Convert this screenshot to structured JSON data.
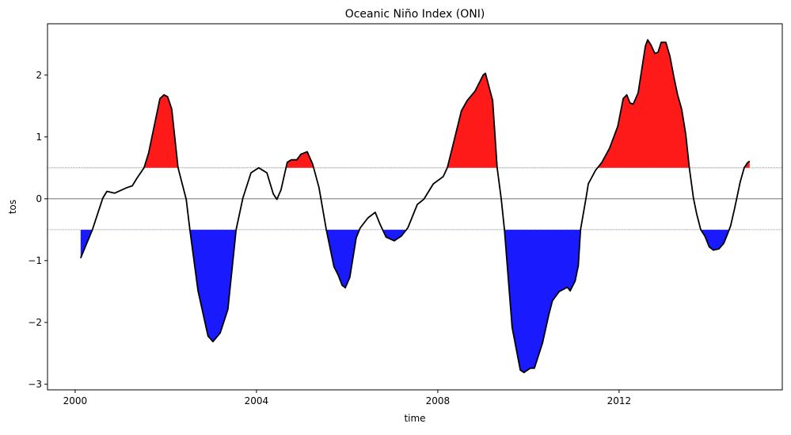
{
  "chart_data": {
    "type": "area",
    "title": "Oceanic Niño Index (ONI)",
    "xlabel": "time",
    "ylabel": "tos",
    "xlim": [
      1999.39,
      2015.6
    ],
    "ylim": [
      -3.09,
      2.83
    ],
    "xticks": [
      2000,
      2004,
      2008,
      2012
    ],
    "xtick_labels": [
      "2000",
      "2004",
      "2008",
      "2012"
    ],
    "yticks": [
      2,
      1,
      0,
      -1,
      -2,
      -3
    ],
    "ytick_labels": [
      "2",
      "1",
      "0",
      "−1",
      "−2",
      "−3"
    ],
    "thresholds": {
      "upper": 0.5,
      "lower": -0.5,
      "zero": 0
    },
    "colors": {
      "line": "#000000",
      "el_nino": "#ff1a1a",
      "la_nina": "#1a1aff",
      "zero_line": "#404040",
      "threshold_line": "#808080"
    },
    "grid": false,
    "series": [
      {
        "name": "ONI",
        "x": [
          2000.12,
          2000.38,
          2000.61,
          2000.7,
          2000.87,
          2001.14,
          2001.26,
          2001.36,
          2001.52,
          2001.62,
          2001.87,
          2001.96,
          2002.04,
          2002.13,
          2002.27,
          2002.45,
          2002.53,
          2002.71,
          2002.93,
          2003.04,
          2003.2,
          2003.37,
          2003.55,
          2003.7,
          2003.88,
          2004.05,
          2004.23,
          2004.37,
          2004.45,
          2004.54,
          2004.68,
          2004.77,
          2004.89,
          2004.98,
          2005.12,
          2005.24,
          2005.38,
          2005.54,
          2005.71,
          2005.8,
          2005.89,
          2005.96,
          2006.06,
          2006.2,
          2006.29,
          2006.46,
          2006.62,
          2006.72,
          2006.86,
          2007.04,
          2007.2,
          2007.34,
          2007.55,
          2007.69,
          2007.9,
          2008.12,
          2008.21,
          2008.35,
          2008.52,
          2008.65,
          2008.82,
          2009.0,
          2009.05,
          2009.21,
          2009.31,
          2009.4,
          2009.47,
          2009.64,
          2009.82,
          2009.9,
          2010.04,
          2010.13,
          2010.31,
          2010.45,
          2010.53,
          2010.68,
          2010.86,
          2010.92,
          2011.03,
          2011.1,
          2011.15,
          2011.27,
          2011.32,
          2011.48,
          2011.62,
          2011.79,
          2011.97,
          2012.09,
          2012.17,
          2012.24,
          2012.31,
          2012.42,
          2012.58,
          2012.63,
          2012.7,
          2012.79,
          2012.86,
          2012.93,
          2013.03,
          2013.12,
          2013.21,
          2013.29,
          2013.38,
          2013.47,
          2013.55,
          2013.64,
          2013.71,
          2013.8,
          2013.89,
          2013.99,
          2014.08,
          2014.2,
          2014.31,
          2014.38,
          2014.46,
          2014.55,
          2014.67,
          2014.76,
          2014.83,
          2014.88
        ],
        "y": [
          -0.96,
          -0.5,
          0.01,
          0.12,
          0.09,
          0.18,
          0.21,
          0.33,
          0.5,
          0.74,
          1.62,
          1.68,
          1.65,
          1.45,
          0.5,
          -0.01,
          -0.5,
          -1.49,
          -2.22,
          -2.31,
          -2.17,
          -1.79,
          -0.5,
          0.01,
          0.42,
          0.5,
          0.42,
          0.08,
          -0.01,
          0.14,
          0.59,
          0.63,
          0.63,
          0.72,
          0.76,
          0.56,
          0.18,
          -0.5,
          -1.1,
          -1.23,
          -1.4,
          -1.44,
          -1.27,
          -0.63,
          -0.47,
          -0.31,
          -0.22,
          -0.4,
          -0.62,
          -0.68,
          -0.6,
          -0.47,
          -0.09,
          -0.01,
          0.24,
          0.36,
          0.5,
          0.91,
          1.42,
          1.59,
          1.74,
          2.0,
          2.03,
          1.59,
          0.5,
          -0.01,
          -0.5,
          -2.08,
          -2.77,
          -2.81,
          -2.74,
          -2.74,
          -2.33,
          -1.87,
          -1.65,
          -1.5,
          -1.43,
          -1.49,
          -1.33,
          -1.08,
          -0.5,
          0.01,
          0.24,
          0.46,
          0.59,
          0.82,
          1.17,
          1.62,
          1.68,
          1.55,
          1.53,
          1.71,
          2.47,
          2.57,
          2.49,
          2.35,
          2.37,
          2.53,
          2.53,
          2.31,
          1.96,
          1.68,
          1.45,
          1.04,
          0.5,
          0.01,
          -0.24,
          -0.5,
          -0.6,
          -0.78,
          -0.83,
          -0.81,
          -0.72,
          -0.59,
          -0.44,
          -0.15,
          0.27,
          0.5,
          0.58,
          0.61
        ]
      }
    ]
  }
}
